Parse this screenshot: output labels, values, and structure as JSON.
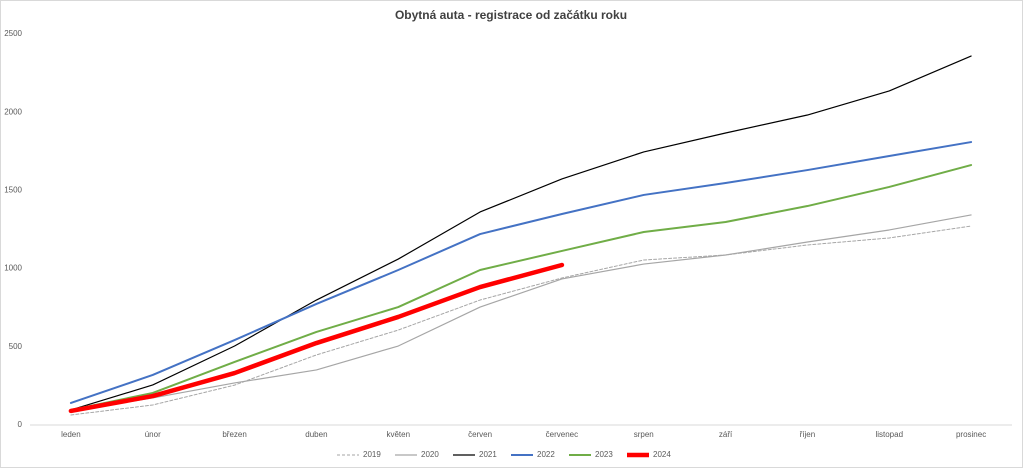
{
  "chart_data": {
    "type": "line",
    "title": "Obytná auta - registrace od začátku roku",
    "categories": [
      "leden",
      "únor",
      "březen",
      "duben",
      "květen",
      "červen",
      "červenec",
      "srpen",
      "září",
      "říjen",
      "listopad",
      "prosinec"
    ],
    "series": [
      {
        "name": "2019",
        "color": "#a6a6a6",
        "dash": true,
        "width": 1,
        "values": [
          64,
          128,
          255,
          448,
          607,
          799,
          940,
          1055,
          1087,
          1151,
          1196,
          1272
        ]
      },
      {
        "name": "2020",
        "color": "#a6a6a6",
        "dash": false,
        "width": 1.2,
        "values": [
          90,
          173,
          269,
          352,
          505,
          754,
          934,
          1029,
          1087,
          1170,
          1247,
          1343
        ]
      },
      {
        "name": "2021",
        "color": "#000000",
        "dash": false,
        "width": 1.2,
        "values": [
          96,
          256,
          505,
          799,
          1061,
          1362,
          1573,
          1746,
          1867,
          1982,
          2136,
          2359
        ]
      },
      {
        "name": "2022",
        "color": "#4472c4",
        "dash": false,
        "width": 2,
        "values": [
          141,
          320,
          543,
          774,
          991,
          1221,
          1349,
          1471,
          1547,
          1630,
          1720,
          1809
        ]
      },
      {
        "name": "2023",
        "color": "#70ad47",
        "dash": false,
        "width": 2,
        "values": [
          96,
          205,
          403,
          595,
          754,
          991,
          1113,
          1234,
          1298,
          1400,
          1522,
          1662
        ]
      },
      {
        "name": "2024",
        "color": "#ff0000",
        "dash": false,
        "width": 4.5,
        "values": [
          90,
          185,
          332,
          524,
          691,
          882,
          1023,
          null,
          null,
          null,
          null,
          null
        ]
      }
    ],
    "ylim": [
      0,
      2500
    ],
    "yticks": [
      0,
      500,
      1000,
      1500,
      2000,
      2500
    ],
    "grid": false,
    "legend": "bottom"
  }
}
